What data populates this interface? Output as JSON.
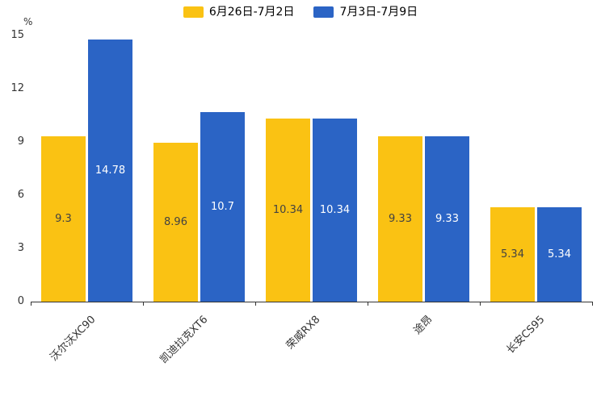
{
  "chart_data": {
    "type": "bar",
    "title": "",
    "unit_label": "%",
    "categories": [
      "沃尔沃XC90",
      "凯迪拉克XT6",
      "荣威RX8",
      "途昂",
      "长安CS95"
    ],
    "series": [
      {
        "name": "6月26日-7月2日",
        "color": "#FAC213",
        "label_color": "#424242",
        "values": [
          9.3,
          8.96,
          10.34,
          9.33,
          5.34
        ]
      },
      {
        "name": "7月3日-7月9日",
        "color": "#2B64C5",
        "label_color": "#ffffff",
        "values": [
          14.78,
          10.7,
          10.34,
          9.33,
          5.34
        ]
      }
    ],
    "ylim": [
      0,
      15
    ],
    "yticks": [
      0,
      3,
      6,
      9,
      12,
      15
    ],
    "grid": false,
    "legend_position": "top",
    "xlabel": "",
    "ylabel": "%"
  }
}
